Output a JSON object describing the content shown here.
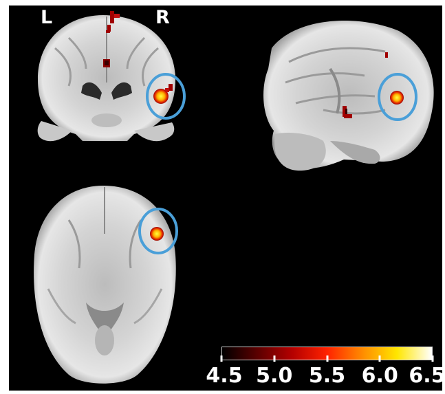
{
  "orientation": {
    "left": "L",
    "right": "R"
  },
  "colorbar": {
    "ticks": [
      "4.5",
      "5.0",
      "5.5",
      "6.0",
      "6.5"
    ],
    "min": 4.5,
    "max": 6.5,
    "colors": [
      "#000000",
      "#5a0000",
      "#b40000",
      "#ff2200",
      "#ff8a00",
      "#ffe600",
      "#ffffff"
    ]
  },
  "colors": {
    "background": "#000000",
    "circle": "#4a9fd8",
    "activation_low": "#8b0000",
    "activation_mid": "#ff3a00",
    "activation_high": "#ffff33"
  }
}
